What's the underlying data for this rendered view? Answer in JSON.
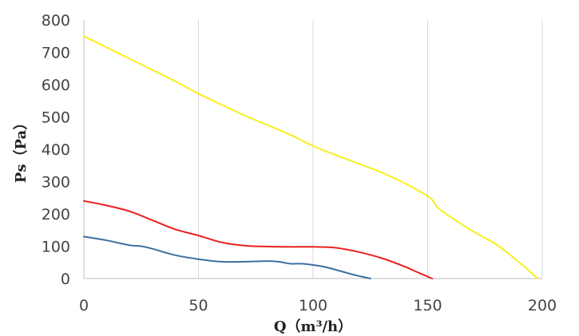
{
  "chart_data": {
    "type": "line",
    "xlabel": "Q（m³/h）",
    "ylabel": "Ps（Pa）",
    "xlim": [
      0,
      200
    ],
    "ylim": [
      0,
      800
    ],
    "x_ticks": [
      0,
      50,
      100,
      150,
      200
    ],
    "y_ticks": [
      0,
      100,
      200,
      300,
      400,
      500,
      600,
      700,
      800
    ],
    "x_tick_labels": [
      "0",
      "50",
      "100",
      "150",
      "200"
    ],
    "y_tick_labels": [
      "0",
      "100",
      "200",
      "300",
      "400",
      "500",
      "600",
      "700",
      "800"
    ],
    "grid": "vertical",
    "legend": "none",
    "series": [
      {
        "color": "#f5f01e",
        "points": [
          [
            0,
            750
          ],
          [
            10,
            715
          ],
          [
            20,
            680
          ],
          [
            30,
            645
          ],
          [
            40,
            610
          ],
          [
            50,
            572
          ],
          [
            60,
            538
          ],
          [
            70,
            505
          ],
          [
            80,
            475
          ],
          [
            90,
            445
          ],
          [
            100,
            410
          ],
          [
            110,
            382
          ],
          [
            120,
            355
          ],
          [
            130,
            328
          ],
          [
            140,
            295
          ],
          [
            150,
            255
          ],
          [
            152,
            243
          ],
          [
            153,
            235
          ],
          [
            154,
            222
          ],
          [
            156,
            210
          ],
          [
            160,
            190
          ],
          [
            170,
            145
          ],
          [
            180,
            105
          ],
          [
            190,
            50
          ],
          [
            198,
            0
          ]
        ]
      },
      {
        "color": "#e8211d",
        "points": [
          [
            0,
            240
          ],
          [
            10,
            226
          ],
          [
            20,
            208
          ],
          [
            30,
            180
          ],
          [
            40,
            152
          ],
          [
            50,
            133
          ],
          [
            60,
            112
          ],
          [
            70,
            102
          ],
          [
            80,
            99
          ],
          [
            90,
            98
          ],
          [
            100,
            98
          ],
          [
            110,
            95
          ],
          [
            120,
            82
          ],
          [
            130,
            63
          ],
          [
            140,
            37
          ],
          [
            146,
            18
          ],
          [
            152,
            0
          ]
        ]
      },
      {
        "color": "#3e6ea0",
        "points": [
          [
            0,
            130
          ],
          [
            10,
            118
          ],
          [
            20,
            103
          ],
          [
            25,
            100
          ],
          [
            30,
            92
          ],
          [
            40,
            72
          ],
          [
            50,
            60
          ],
          [
            60,
            52
          ],
          [
            70,
            52
          ],
          [
            80,
            54
          ],
          [
            85,
            52
          ],
          [
            90,
            46
          ],
          [
            95,
            46
          ],
          [
            100,
            42
          ],
          [
            105,
            36
          ],
          [
            110,
            27
          ],
          [
            115,
            17
          ],
          [
            120,
            8
          ],
          [
            125,
            0
          ]
        ]
      }
    ]
  }
}
